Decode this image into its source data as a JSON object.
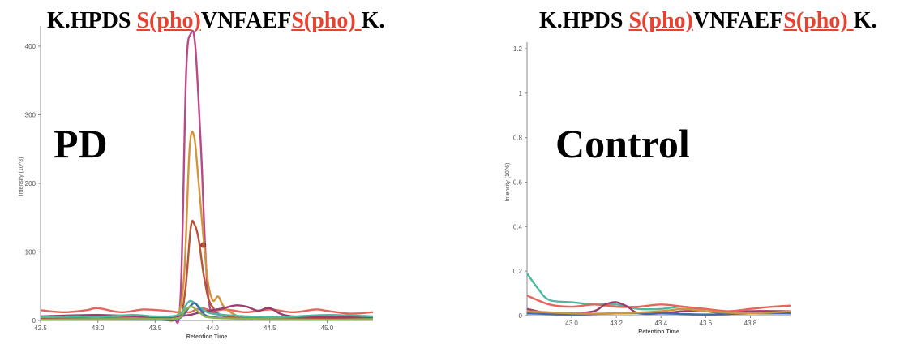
{
  "panels": [
    {
      "title": {
        "prefix": "K.HPDS ",
        "mod1": "S(pho)",
        "middle": "VNFAEF",
        "mod2": "S(pho) ",
        "suffix": "K."
      },
      "label": "PD"
    },
    {
      "title": {
        "prefix": "K.HPDS ",
        "mod1": "S(pho)",
        "middle": "VNFAEF",
        "mod2": "S(pho) ",
        "suffix": "K."
      },
      "label": "Control"
    }
  ],
  "chart_data": [
    {
      "type": "line",
      "title": "",
      "xlabel": "Retention Time",
      "ylabel": "Intensity (10^3)",
      "xlim": [
        42.5,
        45.4
      ],
      "ylim": [
        0,
        420
      ],
      "xticks": [
        "42.5",
        "43.0",
        "43.5",
        "44.0",
        "44.5",
        "45.0"
      ],
      "yticks": [
        "0",
        "100",
        "200",
        "300",
        "400"
      ],
      "series": [
        {
          "color": "#e8635a",
          "x": [
            42.5,
            42.7,
            42.9,
            43.0,
            43.2,
            43.4,
            43.6,
            43.7,
            43.8,
            43.9,
            44.0,
            44.1,
            44.2,
            44.3,
            44.5,
            44.7,
            44.9,
            45.0,
            45.2,
            45.4
          ],
          "y": [
            15,
            12,
            15,
            18,
            12,
            16,
            14,
            12,
            12,
            18,
            14,
            16,
            14,
            12,
            16,
            12,
            16,
            14,
            10,
            12
          ]
        },
        {
          "color": "#b84a8a",
          "x": [
            42.5,
            43.0,
            43.5,
            43.65,
            43.72,
            43.77,
            43.81,
            43.85,
            43.9,
            43.96,
            44.05,
            44.3,
            45.0,
            45.4
          ],
          "y": [
            4,
            5,
            4,
            5,
            30,
            360,
            418,
            400,
            250,
            40,
            10,
            5,
            4,
            5
          ]
        },
        {
          "color": "#d4953a",
          "x": [
            42.5,
            43.0,
            43.5,
            43.68,
            43.75,
            43.8,
            43.84,
            43.88,
            43.95,
            44.0,
            44.05,
            44.1,
            44.2,
            44.3,
            45.4
          ],
          "y": [
            3,
            4,
            3,
            4,
            60,
            250,
            268,
            200,
            70,
            30,
            35,
            20,
            8,
            4,
            3
          ]
        },
        {
          "color": "#b85438",
          "x": [
            42.5,
            43.0,
            43.5,
            43.7,
            43.76,
            43.81,
            43.84,
            43.88,
            43.93,
            44.0,
            44.2,
            45.4
          ],
          "y": [
            2,
            3,
            2,
            3,
            40,
            135,
            141,
            118,
            60,
            20,
            5,
            2
          ]
        },
        {
          "color": "#9c3b6e",
          "x": [
            42.5,
            43.0,
            43.5,
            43.7,
            43.8,
            43.9,
            44.0,
            44.1,
            44.2,
            44.3,
            44.4,
            44.5,
            44.7,
            45.4
          ],
          "y": [
            6,
            8,
            5,
            6,
            8,
            12,
            15,
            18,
            22,
            20,
            14,
            18,
            6,
            5
          ]
        },
        {
          "color": "#4fb8a0",
          "x": [
            42.5,
            42.8,
            43.0,
            43.3,
            43.5,
            43.7,
            43.78,
            43.82,
            43.9,
            44.0,
            44.3,
            44.6,
            45.0,
            45.4
          ],
          "y": [
            5,
            6,
            5,
            8,
            6,
            8,
            25,
            28,
            18,
            10,
            6,
            5,
            8,
            6
          ]
        },
        {
          "color": "#3f6cb0",
          "x": [
            42.5,
            43.0,
            43.5,
            43.7,
            43.8,
            43.85,
            43.9,
            44.0,
            44.5,
            45.0,
            45.4
          ],
          "y": [
            1,
            2,
            1,
            2,
            20,
            25,
            15,
            5,
            2,
            1,
            2
          ]
        },
        {
          "color": "#8fb04a",
          "x": [
            42.5,
            43.0,
            43.5,
            43.7,
            43.76,
            43.82,
            43.9,
            44.0,
            44.5,
            45.0,
            45.4
          ],
          "y": [
            1,
            2,
            2,
            3,
            15,
            20,
            10,
            4,
            2,
            1,
            2
          ]
        }
      ],
      "marker": {
        "x": 43.92,
        "y": 110
      }
    },
    {
      "type": "line",
      "title": "",
      "xlabel": "Retention Time",
      "ylabel": "Intensity (10^6)",
      "xlim": [
        42.8,
        43.98
      ],
      "ylim": [
        0,
        1.2
      ],
      "xticks": [
        "43.0",
        "43.2",
        "43.4",
        "43.6",
        "43.8"
      ],
      "yticks": [
        "0",
        "0.2",
        "0.4",
        "0.6",
        "0.8",
        "1",
        "1.2"
      ],
      "series": [
        {
          "color": "#4fb8a0",
          "x": [
            42.8,
            42.85,
            42.9,
            43.0,
            43.1,
            43.2,
            43.3,
            43.4,
            43.5,
            43.6,
            43.7,
            43.8,
            43.98
          ],
          "y": [
            0.19,
            0.12,
            0.07,
            0.06,
            0.05,
            0.05,
            0.03,
            0.03,
            0.04,
            0.02,
            0.01,
            0.01,
            0.01
          ]
        },
        {
          "color": "#e8635a",
          "x": [
            42.8,
            42.9,
            43.0,
            43.1,
            43.2,
            43.3,
            43.4,
            43.5,
            43.6,
            43.7,
            43.8,
            43.9,
            43.98
          ],
          "y": [
            0.09,
            0.05,
            0.04,
            0.05,
            0.04,
            0.04,
            0.05,
            0.04,
            0.03,
            0.02,
            0.03,
            0.04,
            0.045
          ]
        },
        {
          "color": "#9c3b6e",
          "x": [
            42.8,
            42.9,
            43.0,
            43.1,
            43.15,
            43.2,
            43.25,
            43.3,
            43.4,
            43.5,
            43.6,
            43.7,
            43.8,
            43.98
          ],
          "y": [
            0.03,
            0.01,
            0.01,
            0.02,
            0.05,
            0.06,
            0.04,
            0.01,
            0.01,
            0.02,
            0.02,
            0.01,
            0.02,
            0.02
          ]
        },
        {
          "color": "#3f6cb0",
          "x": [
            42.8,
            43.0,
            43.2,
            43.4,
            43.6,
            43.8,
            43.98
          ],
          "y": [
            0.01,
            0.005,
            0.01,
            0.01,
            0.005,
            0.01,
            0.01
          ]
        },
        {
          "color": "#d4953a",
          "x": [
            42.8,
            43.0,
            43.2,
            43.4,
            43.5,
            43.6,
            43.8,
            43.98
          ],
          "y": [
            0.02,
            0.01,
            0.01,
            0.02,
            0.03,
            0.02,
            0.01,
            0.02
          ]
        }
      ]
    }
  ]
}
